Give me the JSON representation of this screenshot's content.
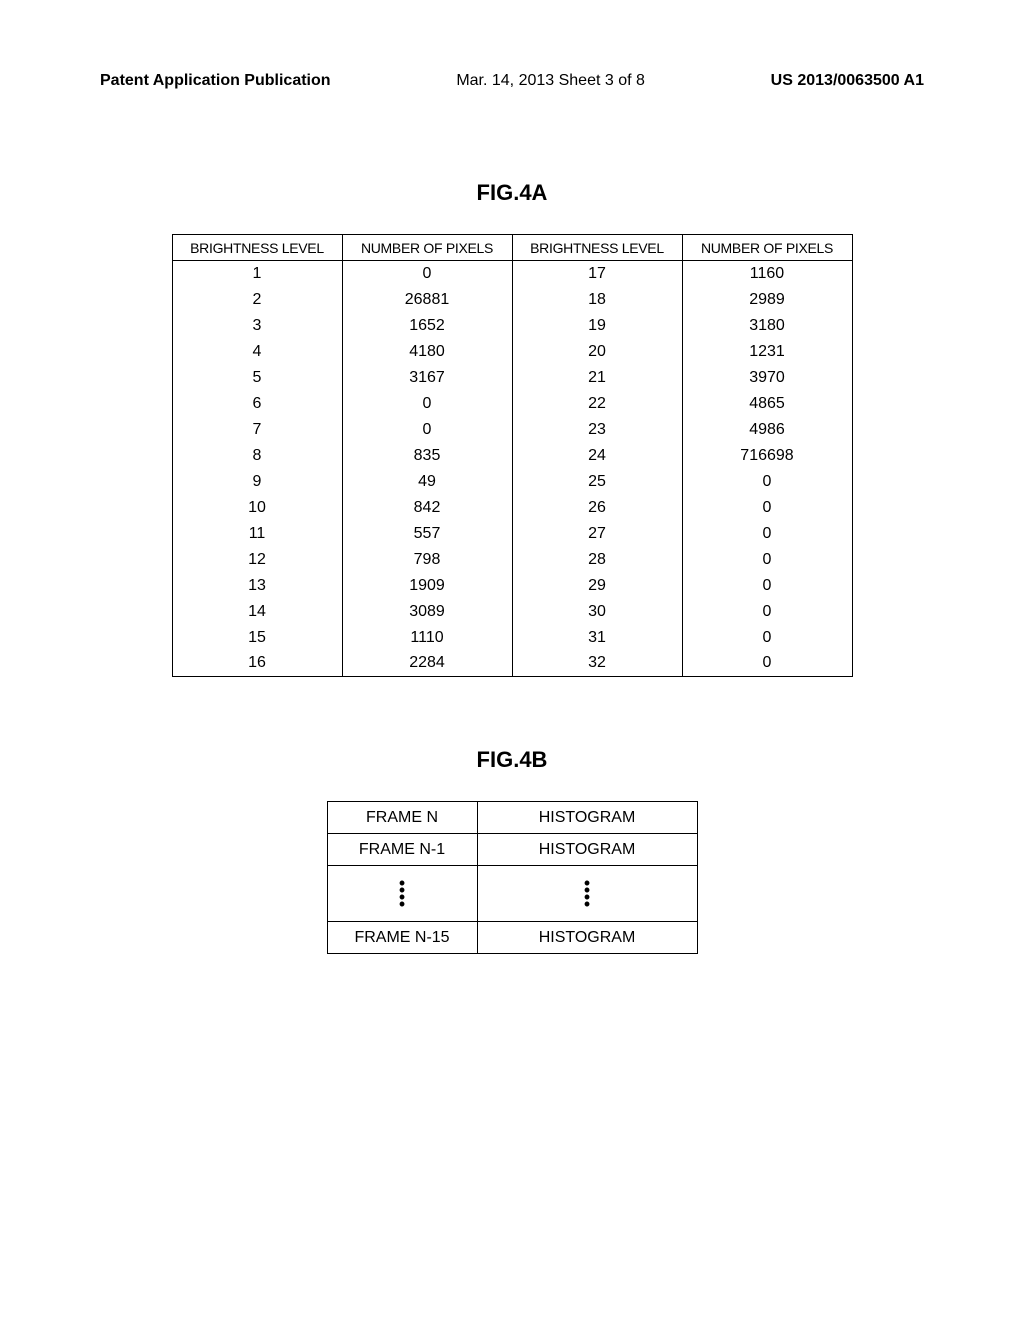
{
  "header": {
    "left": "Patent Application Publication",
    "center": "Mar. 14, 2013  Sheet 3 of 8",
    "right": "US 2013/0063500 A1"
  },
  "fig4a": {
    "label": "FIG.4A",
    "columns": [
      "BRIGHTNESS LEVEL",
      "NUMBER OF PIXELS",
      "BRIGHTNESS LEVEL",
      "NUMBER OF PIXELS"
    ],
    "rows": [
      [
        "1",
        "0",
        "17",
        "1160"
      ],
      [
        "2",
        "26881",
        "18",
        "2989"
      ],
      [
        "3",
        "1652",
        "19",
        "3180"
      ],
      [
        "4",
        "4180",
        "20",
        "1231"
      ],
      [
        "5",
        "3167",
        "21",
        "3970"
      ],
      [
        "6",
        "0",
        "22",
        "4865"
      ],
      [
        "7",
        "0",
        "23",
        "4986"
      ],
      [
        "8",
        "835",
        "24",
        "716698"
      ],
      [
        "9",
        "49",
        "25",
        "0"
      ],
      [
        "10",
        "842",
        "26",
        "0"
      ],
      [
        "11",
        "557",
        "27",
        "0"
      ],
      [
        "12",
        "798",
        "28",
        "0"
      ],
      [
        "13",
        "1909",
        "29",
        "0"
      ],
      [
        "14",
        "3089",
        "30",
        "0"
      ],
      [
        "15",
        "1110",
        "31",
        "0"
      ],
      [
        "16",
        "2284",
        "32",
        "0"
      ]
    ]
  },
  "fig4b": {
    "label": "FIG.4B",
    "rows": [
      [
        "FRAME N",
        "HISTOGRAM"
      ],
      [
        "FRAME N-1",
        "HISTOGRAM"
      ]
    ],
    "last_row": [
      "FRAME N-15",
      "HISTOGRAM"
    ]
  }
}
